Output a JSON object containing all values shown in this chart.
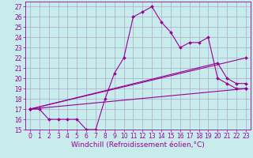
{
  "background_color": "#c8ecec",
  "grid_color": "#aaaacc",
  "line_color": "#990099",
  "marker": "D",
  "marker_size": 2,
  "xlim": [
    -0.5,
    23.5
  ],
  "ylim": [
    15,
    27.5
  ],
  "xticks": [
    0,
    1,
    2,
    3,
    4,
    5,
    6,
    7,
    8,
    9,
    10,
    11,
    12,
    13,
    14,
    15,
    16,
    17,
    18,
    19,
    20,
    21,
    22,
    23
  ],
  "yticks": [
    15,
    16,
    17,
    18,
    19,
    20,
    21,
    22,
    23,
    24,
    25,
    26,
    27
  ],
  "xlabel": "Windchill (Refroidissement éolien,°C)",
  "line1_x": [
    0,
    1,
    2,
    3,
    4,
    5,
    6,
    7,
    8,
    9,
    10,
    11,
    12,
    13,
    14,
    15,
    16,
    17,
    18,
    19,
    20,
    21,
    22,
    23
  ],
  "line1_y": [
    17,
    17,
    16,
    16,
    16,
    16,
    15,
    15,
    18,
    20.5,
    22,
    26,
    26.5,
    27,
    25.5,
    24.5,
    23,
    23.5,
    23.5,
    24,
    20,
    19.5,
    19,
    19
  ],
  "line2_x": [
    0,
    23
  ],
  "line2_y": [
    17,
    22
  ],
  "line3_x": [
    0,
    23
  ],
  "line3_y": [
    17,
    19
  ],
  "line4_x": [
    0,
    20,
    21,
    22,
    23
  ],
  "line4_y": [
    17,
    21.5,
    20,
    19.5,
    19.5
  ],
  "tick_fontsize": 5.5,
  "xlabel_fontsize": 6.5,
  "lw": 0.8
}
